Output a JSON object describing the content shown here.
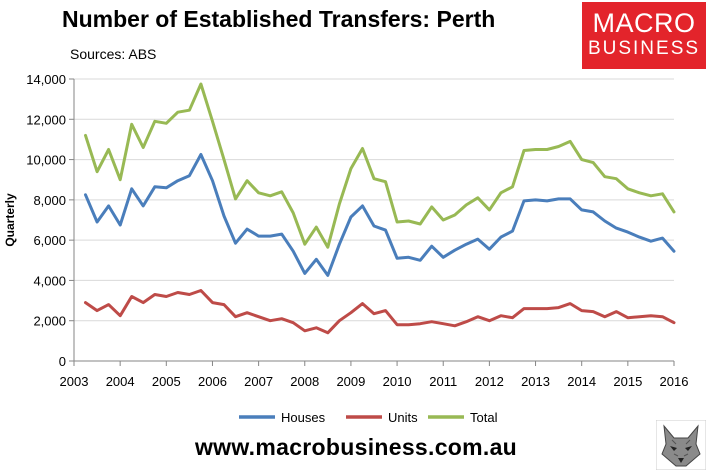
{
  "header": {
    "title": "Number of Established Transfers: Perth",
    "subtitle": "Sources: ABS"
  },
  "logo": {
    "line1": "MACRO",
    "line2": "BUSINESS",
    "bg_color": "#e3242b"
  },
  "footer": {
    "url": "www.macrobusiness.com.au",
    "mascot_icon": "wolf-head-icon"
  },
  "chart_data": {
    "type": "line",
    "title": "Number of Established Transfers: Perth",
    "ylabel": "Quarterly",
    "xlabel": "",
    "ylim": [
      0,
      14000
    ],
    "xlim": [
      2003,
      2016
    ],
    "yticks": [
      0,
      2000,
      4000,
      6000,
      8000,
      10000,
      12000,
      14000
    ],
    "ytick_labels": [
      "0",
      "2,000",
      "4,000",
      "6,000",
      "8,000",
      "10,000",
      "12,000",
      "14,000"
    ],
    "xticks": [
      2003,
      2004,
      2005,
      2006,
      2007,
      2008,
      2009,
      2010,
      2011,
      2012,
      2013,
      2014,
      2015,
      2016
    ],
    "xtick_labels": [
      "2003",
      "2004",
      "2005",
      "2006",
      "2007",
      "2008",
      "2009",
      "2010",
      "2011",
      "2012",
      "2013",
      "2014",
      "2015",
      "2016"
    ],
    "grid": true,
    "legend": "bottom",
    "x": [
      2003.25,
      2003.5,
      2003.75,
      2004.0,
      2004.25,
      2004.5,
      2004.75,
      2005.0,
      2005.25,
      2005.5,
      2005.75,
      2006.0,
      2006.25,
      2006.5,
      2006.75,
      2007.0,
      2007.25,
      2007.5,
      2007.75,
      2008.0,
      2008.25,
      2008.5,
      2008.75,
      2009.0,
      2009.25,
      2009.5,
      2009.75,
      2010.0,
      2010.25,
      2010.5,
      2010.75,
      2011.0,
      2011.25,
      2011.5,
      2011.75,
      2012.0,
      2012.25,
      2012.5,
      2012.75,
      2013.0,
      2013.25,
      2013.5,
      2013.75,
      2014.0,
      2014.25,
      2014.5,
      2014.75,
      2015.0,
      2015.25,
      2015.5,
      2015.75,
      2016.0
    ],
    "series": [
      {
        "name": "Houses",
        "color": "#4a7ebb",
        "values": [
          8250,
          6900,
          7700,
          6750,
          8550,
          7700,
          8650,
          8600,
          8950,
          9200,
          10250,
          8950,
          7200,
          5850,
          6550,
          6200,
          6200,
          6300,
          5450,
          4350,
          5050,
          4250,
          5800,
          7150,
          7700,
          6700,
          6500,
          5100,
          5150,
          5000,
          5700,
          5150,
          5500,
          5800,
          6050,
          5550,
          6150,
          6450,
          7950,
          8000,
          7950,
          8050,
          8050,
          7500,
          7400,
          6950,
          6600,
          6400,
          6150,
          5950,
          6100,
          5450
        ]
      },
      {
        "name": "Units",
        "color": "#be4b48",
        "values": [
          2900,
          2500,
          2800,
          2250,
          3200,
          2900,
          3300,
          3200,
          3400,
          3300,
          3500,
          2900,
          2800,
          2200,
          2400,
          2200,
          2000,
          2100,
          1900,
          1500,
          1650,
          1400,
          2000,
          2400,
          2850,
          2350,
          2500,
          1800,
          1800,
          1850,
          1950,
          1850,
          1750,
          1950,
          2200,
          2000,
          2250,
          2150,
          2600,
          2600,
          2600,
          2650,
          2850,
          2500,
          2450,
          2200,
          2450,
          2150,
          2200,
          2250,
          2200,
          1900
        ]
      },
      {
        "name": "Total",
        "color": "#98b954",
        "values": [
          11200,
          9400,
          10500,
          9000,
          11750,
          10600,
          11900,
          11800,
          12350,
          12450,
          13750,
          11900,
          10000,
          8050,
          8950,
          8350,
          8200,
          8400,
          7350,
          5800,
          6650,
          5650,
          7800,
          9550,
          10550,
          9050,
          8900,
          6900,
          6950,
          6800,
          7650,
          7000,
          7250,
          7750,
          8100,
          7500,
          8350,
          8650,
          10450,
          10500,
          10500,
          10650,
          10900,
          10000,
          9850,
          9150,
          9050,
          8550,
          8350,
          8200,
          8300,
          7400
        ]
      }
    ]
  }
}
